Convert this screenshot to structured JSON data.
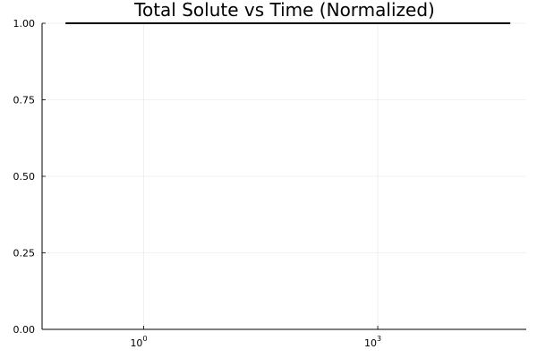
{
  "chart_data": {
    "type": "line",
    "title": "Total Solute vs Time (Normalized)",
    "xlabel": "",
    "ylabel": "",
    "x_scale": "log10",
    "xlim": [
      0.05,
      80000
    ],
    "ylim": [
      0,
      1.0
    ],
    "grid": true,
    "legend": "none",
    "x_ticks": [
      {
        "value": 1,
        "base": "10",
        "exp": "0"
      },
      {
        "value": 1000,
        "base": "10",
        "exp": "3"
      }
    ],
    "y_ticks": [
      {
        "value": 0,
        "label": "0.00"
      },
      {
        "value": 0.25,
        "label": "0.25"
      },
      {
        "value": 0.5,
        "label": "0.50"
      },
      {
        "value": 0.75,
        "label": "0.75"
      },
      {
        "value": 1.0,
        "label": "1.00"
      }
    ],
    "series": [
      {
        "color": "#000000",
        "x": [
          0.1,
          50000
        ],
        "y": [
          1.0,
          1.0
        ]
      }
    ]
  }
}
